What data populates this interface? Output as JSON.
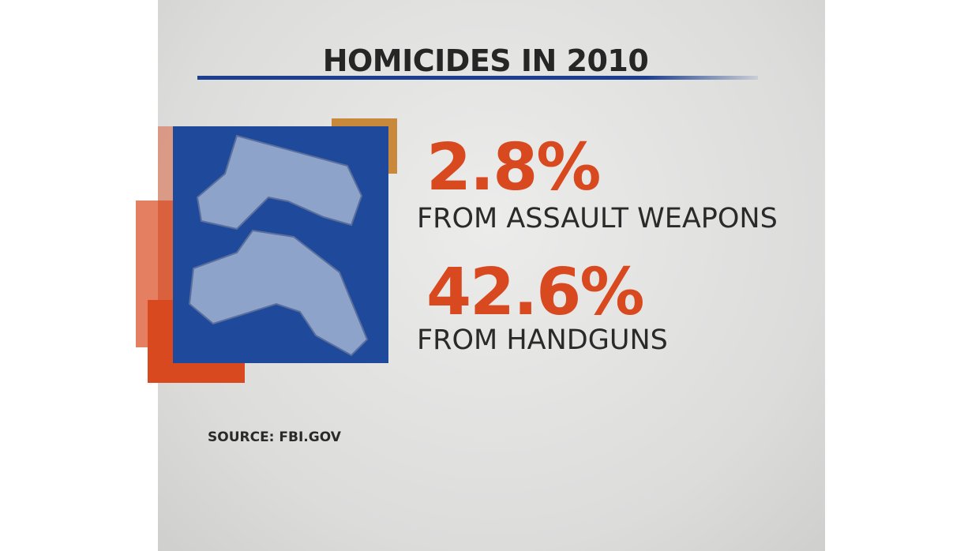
{
  "title": "HOMICIDES IN 2010",
  "stats": [
    {
      "value": "2.8%",
      "label": "FROM ASSAULT WEAPONS"
    },
    {
      "value": "42.6%",
      "label": "FROM HANDGUNS"
    }
  ],
  "source": "SOURCE: FBI.GOV"
}
